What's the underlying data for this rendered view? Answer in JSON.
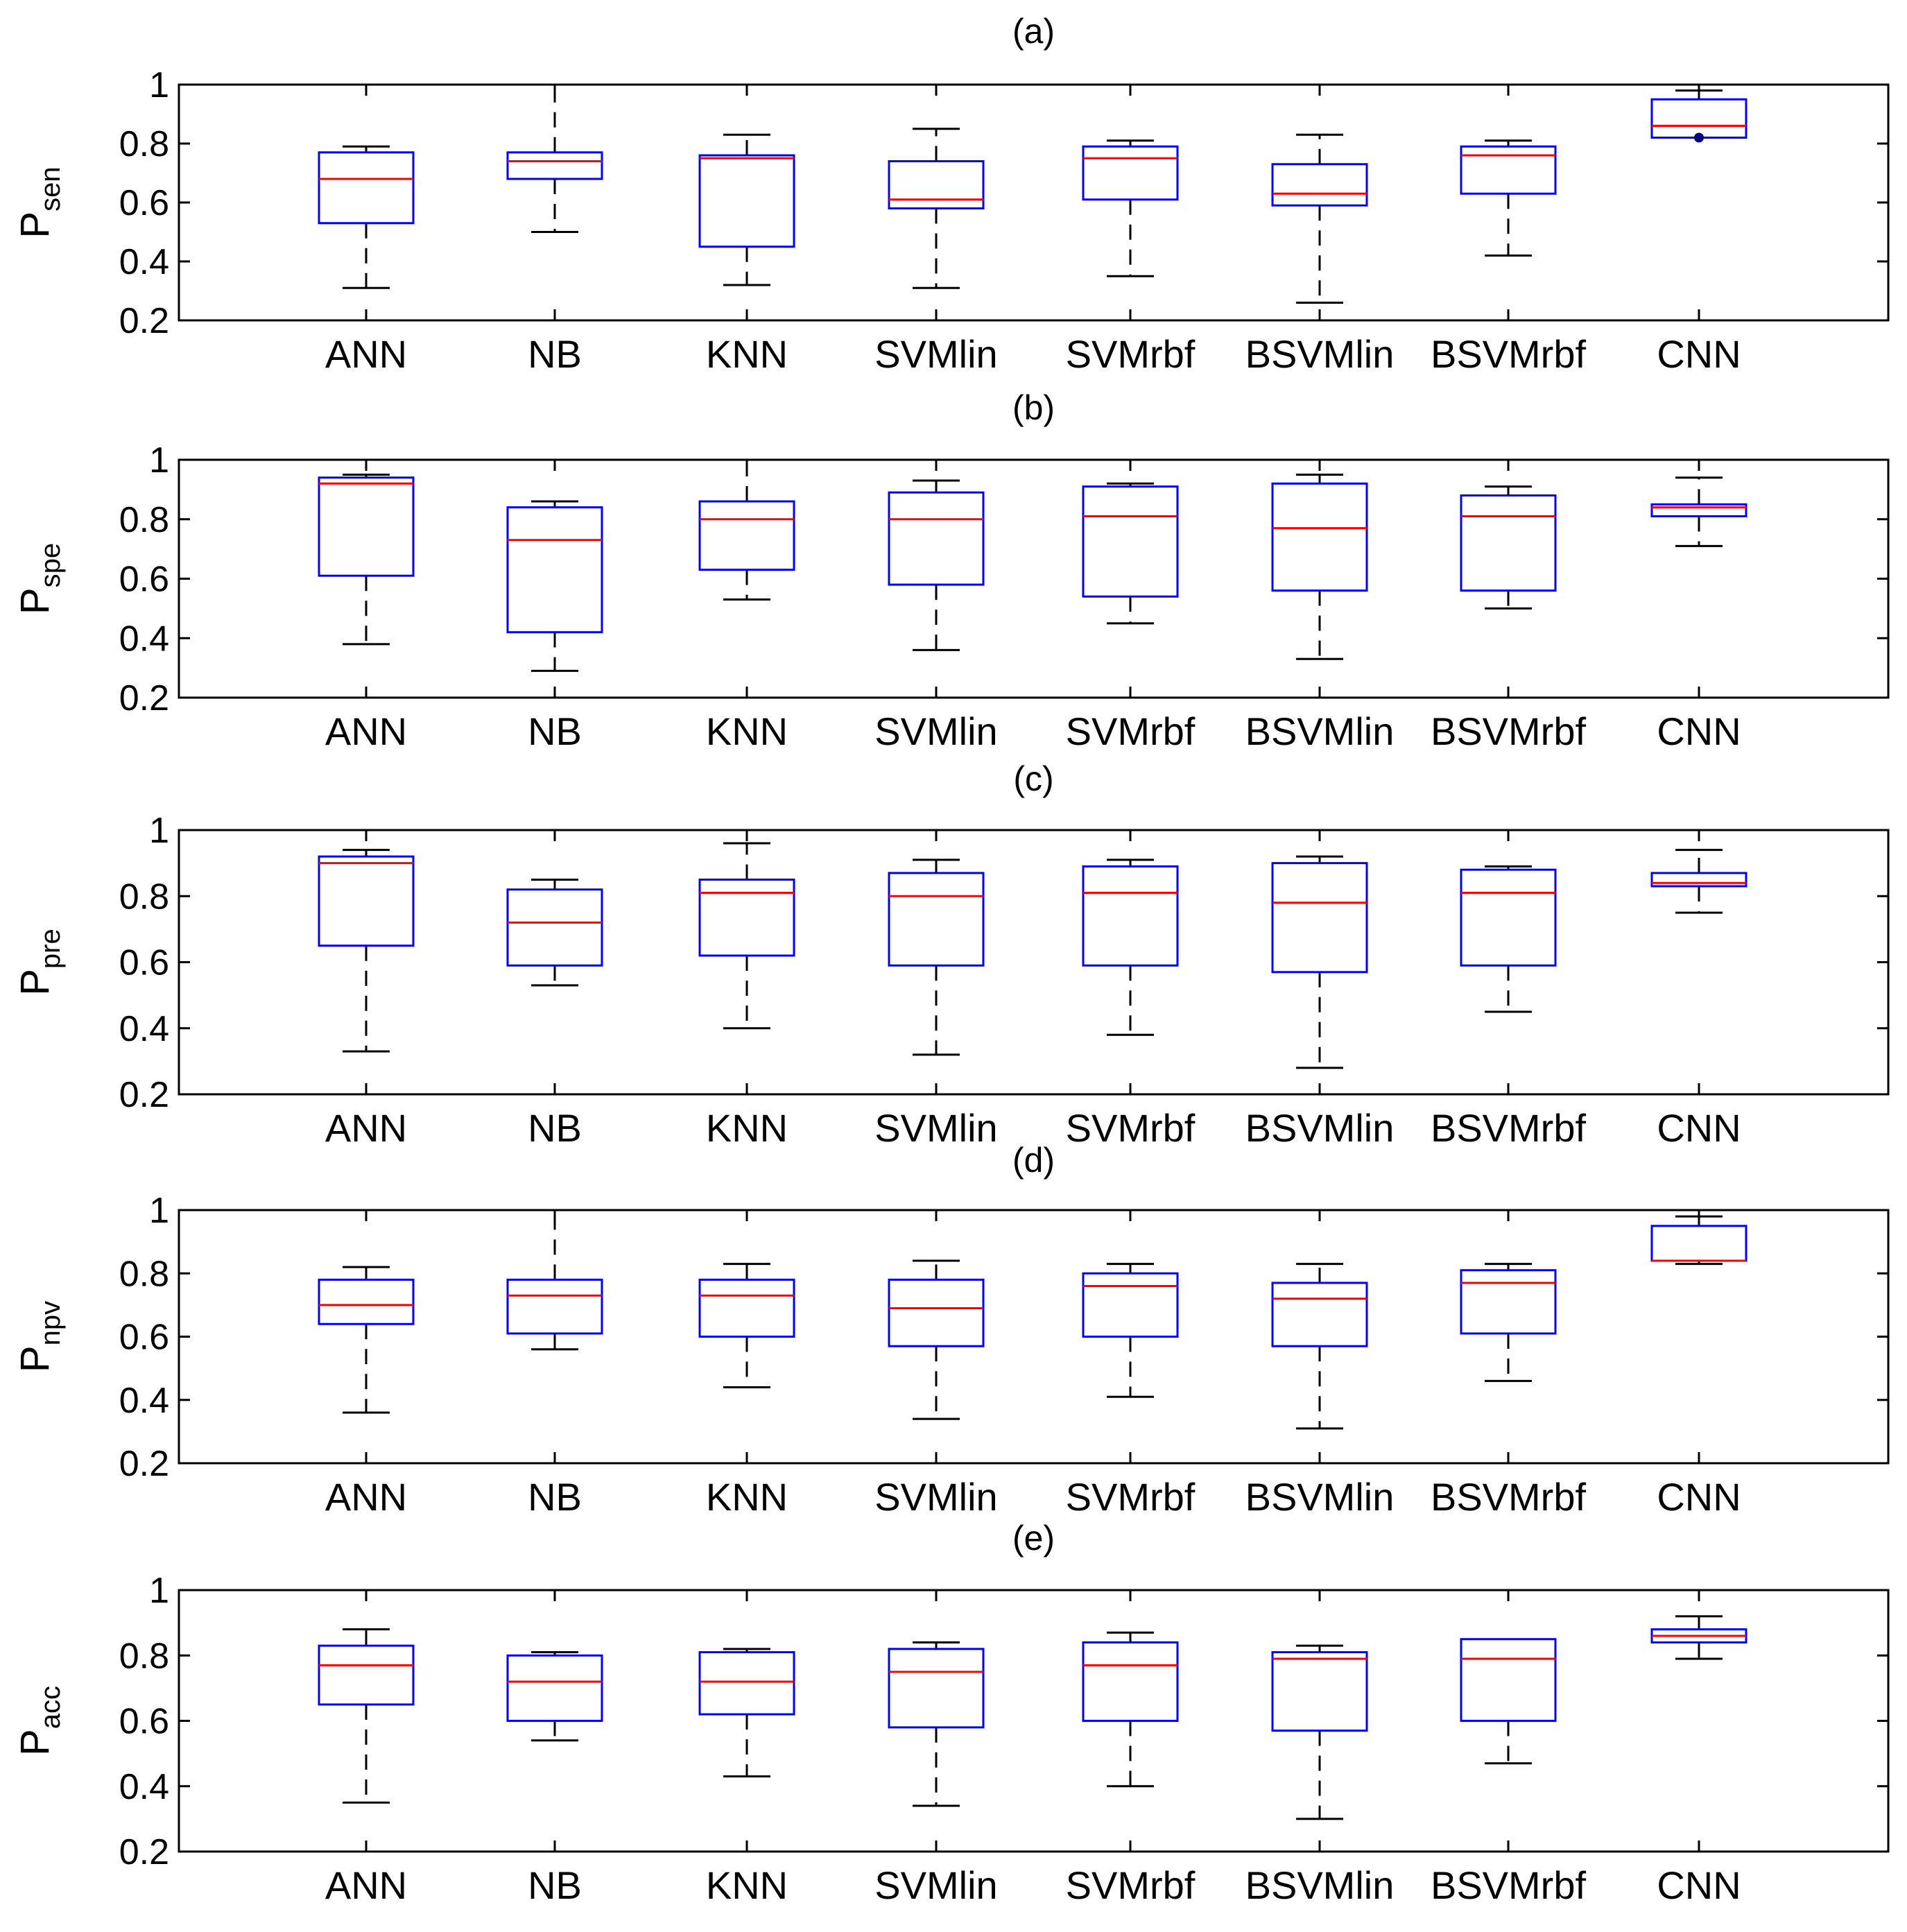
{
  "chart_data": [
    {
      "type": "box",
      "title": "(a)",
      "ylabel": "P",
      "ylabel_sub": "sen",
      "ylim": [
        0.2,
        1
      ],
      "yticks": [
        "0.2",
        "0.4",
        "0.6",
        "0.8",
        "1"
      ],
      "categories": [
        "ANN",
        "NB",
        "KNN",
        "SVMlin",
        "SVMrbf",
        "BSVMlin",
        "BSVMrbf",
        "CNN"
      ],
      "boxes": [
        {
          "min": 0.31,
          "q1": 0.53,
          "median": 0.68,
          "q3": 0.77,
          "max": 0.79
        },
        {
          "min": 0.5,
          "q1": 0.68,
          "median": 0.74,
          "q3": 0.77,
          "max": 1.0
        },
        {
          "min": 0.32,
          "q1": 0.45,
          "median": 0.75,
          "q3": 0.76,
          "max": 0.83
        },
        {
          "min": 0.31,
          "q1": 0.58,
          "median": 0.61,
          "q3": 0.74,
          "max": 0.85
        },
        {
          "min": 0.35,
          "q1": 0.61,
          "median": 0.75,
          "q3": 0.79,
          "max": 0.81
        },
        {
          "min": 0.26,
          "q1": 0.59,
          "median": 0.63,
          "q3": 0.73,
          "max": 0.83
        },
        {
          "min": 0.42,
          "q1": 0.63,
          "median": 0.76,
          "q3": 0.79,
          "max": 0.81
        },
        {
          "min": 0.82,
          "q1": 0.82,
          "median": 0.86,
          "q3": 0.95,
          "max": 0.98,
          "outliers": [
            0.82
          ]
        }
      ]
    },
    {
      "type": "box",
      "title": "(b)",
      "ylabel": "P",
      "ylabel_sub": "spe",
      "ylim": [
        0.2,
        1
      ],
      "yticks": [
        "0.2",
        "0.4",
        "0.6",
        "0.8",
        "1"
      ],
      "categories": [
        "ANN",
        "NB",
        "KNN",
        "SVMlin",
        "SVMrbf",
        "BSVMlin",
        "BSVMrbf",
        "CNN"
      ],
      "boxes": [
        {
          "min": 0.38,
          "q1": 0.61,
          "median": 0.92,
          "q3": 0.94,
          "max": 0.95
        },
        {
          "min": 0.29,
          "q1": 0.42,
          "median": 0.73,
          "q3": 0.84,
          "max": 0.86
        },
        {
          "min": 0.53,
          "q1": 0.63,
          "median": 0.8,
          "q3": 0.86,
          "max": 1.0
        },
        {
          "min": 0.36,
          "q1": 0.58,
          "median": 0.8,
          "q3": 0.89,
          "max": 0.93
        },
        {
          "min": 0.45,
          "q1": 0.54,
          "median": 0.81,
          "q3": 0.91,
          "max": 0.92
        },
        {
          "min": 0.33,
          "q1": 0.56,
          "median": 0.77,
          "q3": 0.92,
          "max": 0.95
        },
        {
          "min": 0.5,
          "q1": 0.56,
          "median": 0.81,
          "q3": 0.88,
          "max": 0.91
        },
        {
          "min": 0.71,
          "q1": 0.81,
          "median": 0.84,
          "q3": 0.85,
          "max": 0.94
        }
      ]
    },
    {
      "type": "box",
      "title": "(c)",
      "ylabel": "P",
      "ylabel_sub": "pre",
      "ylim": [
        0.2,
        1
      ],
      "yticks": [
        "0.2",
        "0.4",
        "0.6",
        "0.8",
        "1"
      ],
      "categories": [
        "ANN",
        "NB",
        "KNN",
        "SVMlin",
        "SVMrbf",
        "BSVMlin",
        "BSVMrbf",
        "CNN"
      ],
      "boxes": [
        {
          "min": 0.33,
          "q1": 0.65,
          "median": 0.9,
          "q3": 0.92,
          "max": 0.94
        },
        {
          "min": 0.53,
          "q1": 0.59,
          "median": 0.72,
          "q3": 0.82,
          "max": 0.85
        },
        {
          "min": 0.4,
          "q1": 0.62,
          "median": 0.81,
          "q3": 0.85,
          "max": 0.96
        },
        {
          "min": 0.32,
          "q1": 0.59,
          "median": 0.8,
          "q3": 0.87,
          "max": 0.91
        },
        {
          "min": 0.38,
          "q1": 0.59,
          "median": 0.81,
          "q3": 0.89,
          "max": 0.91
        },
        {
          "min": 0.28,
          "q1": 0.57,
          "median": 0.78,
          "q3": 0.9,
          "max": 0.92
        },
        {
          "min": 0.45,
          "q1": 0.59,
          "median": 0.81,
          "q3": 0.88,
          "max": 0.89
        },
        {
          "min": 0.75,
          "q1": 0.83,
          "median": 0.84,
          "q3": 0.87,
          "max": 0.94
        }
      ]
    },
    {
      "type": "box",
      "title": "(d)",
      "ylabel": "P",
      "ylabel_sub": "npv",
      "ylim": [
        0.2,
        1
      ],
      "yticks": [
        "0.2",
        "0.4",
        "0.6",
        "0.8",
        "1"
      ],
      "categories": [
        "ANN",
        "NB",
        "KNN",
        "SVMlin",
        "SVMrbf",
        "BSVMlin",
        "BSVMrbf",
        "CNN"
      ],
      "boxes": [
        {
          "min": 0.36,
          "q1": 0.64,
          "median": 0.7,
          "q3": 0.78,
          "max": 0.82
        },
        {
          "min": 0.56,
          "q1": 0.61,
          "median": 0.73,
          "q3": 0.78,
          "max": 1.0
        },
        {
          "min": 0.44,
          "q1": 0.6,
          "median": 0.73,
          "q3": 0.78,
          "max": 0.83
        },
        {
          "min": 0.34,
          "q1": 0.57,
          "median": 0.69,
          "q3": 0.78,
          "max": 0.84
        },
        {
          "min": 0.41,
          "q1": 0.6,
          "median": 0.76,
          "q3": 0.8,
          "max": 0.83
        },
        {
          "min": 0.31,
          "q1": 0.57,
          "median": 0.72,
          "q3": 0.77,
          "max": 0.83
        },
        {
          "min": 0.46,
          "q1": 0.61,
          "median": 0.77,
          "q3": 0.81,
          "max": 0.83
        },
        {
          "min": 0.83,
          "q1": 0.84,
          "median": 0.84,
          "q3": 0.95,
          "max": 0.98
        }
      ]
    },
    {
      "type": "box",
      "title": "(e)",
      "ylabel": "P",
      "ylabel_sub": "acc",
      "ylim": [
        0.2,
        1
      ],
      "yticks": [
        "0.2",
        "0.4",
        "0.6",
        "0.8",
        "1"
      ],
      "categories": [
        "ANN",
        "NB",
        "KNN",
        "SVMlin",
        "SVMrbf",
        "BSVMlin",
        "BSVMrbf",
        "CNN"
      ],
      "boxes": [
        {
          "min": 0.35,
          "q1": 0.65,
          "median": 0.77,
          "q3": 0.83,
          "max": 0.88
        },
        {
          "min": 0.54,
          "q1": 0.6,
          "median": 0.72,
          "q3": 0.8,
          "max": 0.81
        },
        {
          "min": 0.43,
          "q1": 0.62,
          "median": 0.72,
          "q3": 0.81,
          "max": 0.82
        },
        {
          "min": 0.34,
          "q1": 0.58,
          "median": 0.75,
          "q3": 0.82,
          "max": 0.84
        },
        {
          "min": 0.4,
          "q1": 0.6,
          "median": 0.77,
          "q3": 0.84,
          "max": 0.87
        },
        {
          "min": 0.3,
          "q1": 0.57,
          "median": 0.79,
          "q3": 0.81,
          "max": 0.83
        },
        {
          "min": 0.47,
          "q1": 0.6,
          "median": 0.79,
          "q3": 0.85,
          "max": 0.85
        },
        {
          "min": 0.79,
          "q1": 0.84,
          "median": 0.86,
          "q3": 0.88,
          "max": 0.92
        }
      ]
    }
  ],
  "colors": {
    "axis": "#000000",
    "box": "#0000ff",
    "median": "#ff0000",
    "whisker": "#000000",
    "outlier": "#000080"
  }
}
